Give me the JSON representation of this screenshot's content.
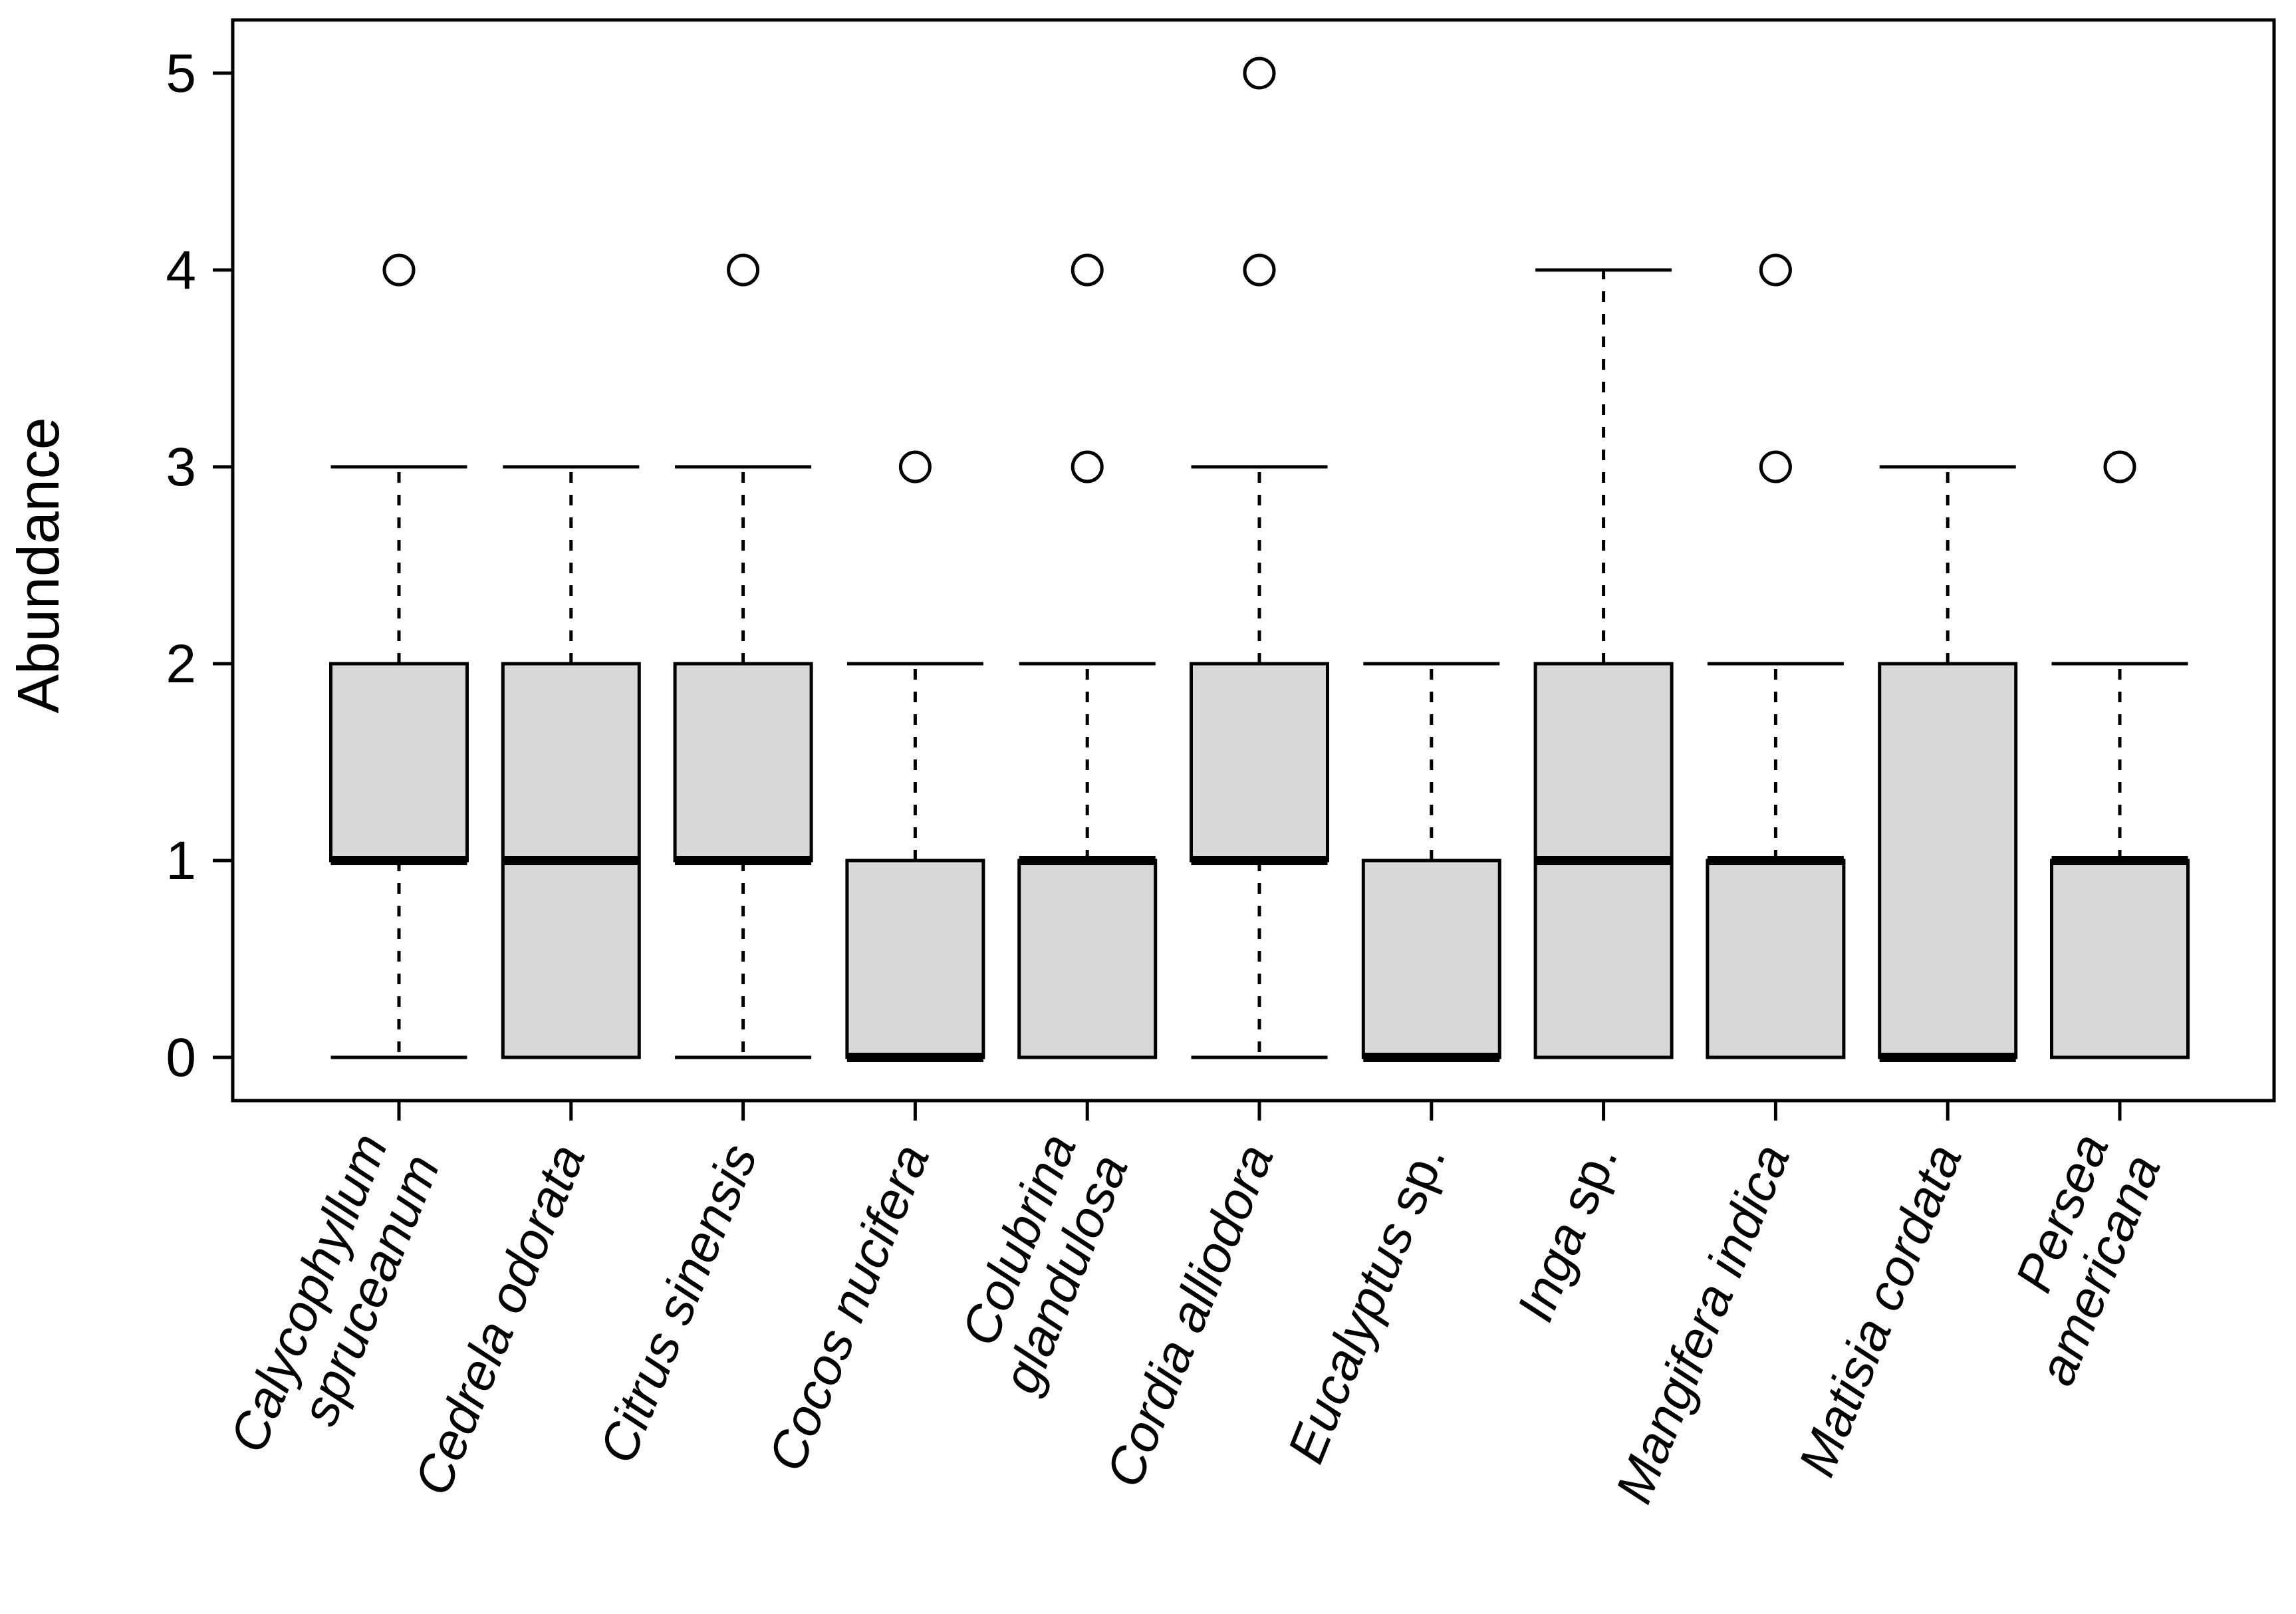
{
  "chart_data": {
    "type": "boxplot",
    "title": "",
    "xlabel": "",
    "ylabel": "Abundance",
    "ylim": [
      0,
      5
    ],
    "yticks": [
      0,
      1,
      2,
      3,
      4,
      5
    ],
    "grid": false,
    "box_fill": "#d8d8d8",
    "stroke_color": "#000000",
    "categories": [
      "Calycophyllum spruceanum",
      "Cedrela odorata",
      "Citrus sinensis",
      "Cocos nucifera",
      "Colubrina glandulosa",
      "Cordia alliodora",
      "Eucalyptus sp.",
      "Inga sp.",
      "Mangifera indica",
      "Matisia cordata",
      "Persea americana"
    ],
    "species": [
      {
        "name": "Calycophyllum spruceanum",
        "label_lines": [
          "Calycophyllum",
          "spruceanum"
        ],
        "whisker_low": 0,
        "q1": 1,
        "median": 1,
        "q3": 2,
        "whisker_high": 3,
        "outliers": [
          4
        ]
      },
      {
        "name": "Cedrela odorata",
        "label_lines": [
          "Cedrela odorata"
        ],
        "whisker_low": 0,
        "q1": 0,
        "median": 1,
        "q3": 2,
        "whisker_high": 3,
        "outliers": []
      },
      {
        "name": "Citrus sinensis",
        "label_lines": [
          "Citrus sinensis"
        ],
        "whisker_low": 0,
        "q1": 1,
        "median": 1,
        "q3": 2,
        "whisker_high": 3,
        "outliers": [
          4
        ]
      },
      {
        "name": "Cocos nucifera",
        "label_lines": [
          "Cocos nucifera"
        ],
        "whisker_low": 0,
        "q1": 0,
        "median": 0,
        "q3": 1,
        "whisker_high": 2,
        "outliers": [
          3
        ]
      },
      {
        "name": "Colubrina glandulosa",
        "label_lines": [
          "Colubrina",
          "glandulosa"
        ],
        "whisker_low": 0,
        "q1": 0,
        "median": 1,
        "q3": 1,
        "whisker_high": 2,
        "outliers": [
          3,
          4
        ]
      },
      {
        "name": "Cordia alliodora",
        "label_lines": [
          "Cordia alliodora"
        ],
        "whisker_low": 0,
        "q1": 1,
        "median": 1,
        "q3": 2,
        "whisker_high": 3,
        "outliers": [
          4,
          5
        ]
      },
      {
        "name": "Eucalyptus sp.",
        "label_lines": [
          "Eucalyptus sp."
        ],
        "whisker_low": 0,
        "q1": 0,
        "median": 0,
        "q3": 1,
        "whisker_high": 2,
        "outliers": []
      },
      {
        "name": "Inga sp.",
        "label_lines": [
          "Inga sp."
        ],
        "whisker_low": 0,
        "q1": 0,
        "median": 1,
        "q3": 2,
        "whisker_high": 4,
        "outliers": []
      },
      {
        "name": "Mangifera indica",
        "label_lines": [
          "Mangifera indica"
        ],
        "whisker_low": 0,
        "q1": 0,
        "median": 1,
        "q3": 1,
        "whisker_high": 2,
        "outliers": [
          3,
          4
        ]
      },
      {
        "name": "Matisia cordata",
        "label_lines": [
          "Matisia cordata"
        ],
        "whisker_low": 0,
        "q1": 0,
        "median": 0,
        "q3": 2,
        "whisker_high": 3,
        "outliers": []
      },
      {
        "name": "Persea americana",
        "label_lines": [
          "Persea",
          "americana"
        ],
        "whisker_low": 0,
        "q1": 0,
        "median": 1,
        "q3": 1,
        "whisker_high": 2,
        "outliers": [
          3
        ]
      }
    ]
  }
}
